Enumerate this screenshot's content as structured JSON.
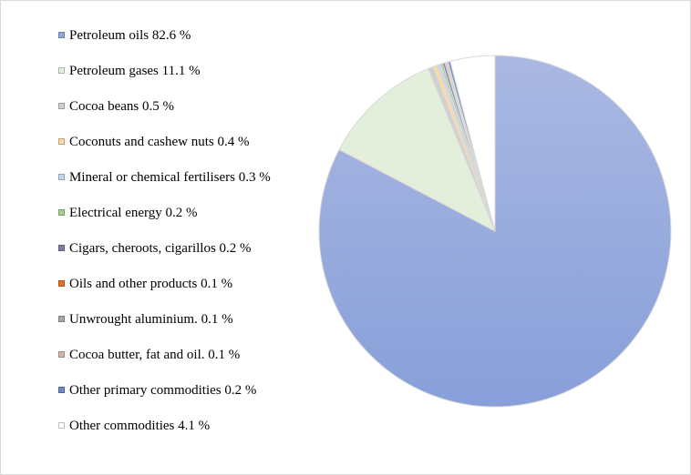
{
  "chart_data": {
    "type": "pie",
    "legend_position": "left",
    "series": [
      {
        "label": "Petroleum oils  82.6 %",
        "value": 82.6,
        "color": "#93a9dd"
      },
      {
        "label": "Petroleum gases  11.1 %",
        "value": 11.1,
        "color": "#e3efda"
      },
      {
        "label": "Cocoa beans 0.5 %",
        "value": 0.5,
        "color": "#d0d0d0"
      },
      {
        "label": "Coconuts and cashew nuts 0.4 %",
        "value": 0.4,
        "color": "#fbd9a8"
      },
      {
        "label": "Mineral or chemical fertilisers 0.3 %",
        "value": 0.3,
        "color": "#c6d7ee"
      },
      {
        "label": "Electrical energy 0.2 %",
        "value": 0.2,
        "color": "#a9d18e"
      },
      {
        "label": "Cigars, cheroots, cigarillos  0.2 %",
        "value": 0.2,
        "color": "#7f7fa6"
      },
      {
        "label": "Oils and other products  0.1 %",
        "value": 0.1,
        "color": "#e36f2b"
      },
      {
        "label": "Unwrought aluminium. 0.1 %",
        "value": 0.1,
        "color": "#a6a6a6"
      },
      {
        "label": "Cocoa butter, fat and oil. 0.1 %",
        "value": 0.1,
        "color": "#d6b6a0"
      },
      {
        "label": "Other primary commodities 0.2 %",
        "value": 0.2,
        "color": "#6f86c0"
      },
      {
        "label": "Other commodities 4.1 %",
        "value": 4.1,
        "color": "#ffffff"
      }
    ]
  }
}
